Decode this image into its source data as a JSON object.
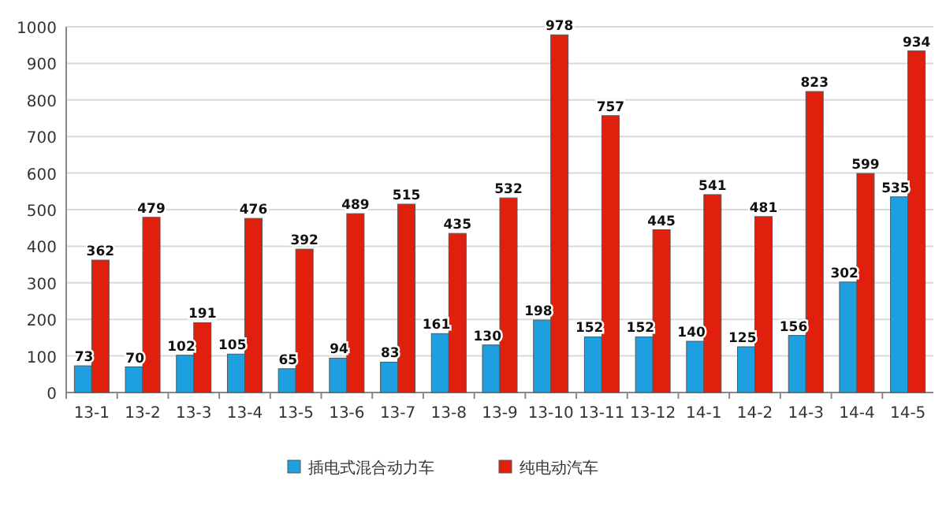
{
  "chart_data": {
    "type": "bar",
    "categories": [
      "13-1",
      "13-2",
      "13-3",
      "13-4",
      "13-5",
      "13-6",
      "13-7",
      "13-8",
      "13-9",
      "13-10",
      "13-11",
      "13-12",
      "14-1",
      "14-2",
      "14-3",
      "14-4",
      "14-5"
    ],
    "series": [
      {
        "name": "插电式混合动力车",
        "color": "#1e9fe0",
        "values": [
          73,
          70,
          102,
          105,
          65,
          94,
          83,
          161,
          130,
          198,
          152,
          152,
          140,
          125,
          156,
          302,
          535
        ]
      },
      {
        "name": "纯电动汽车",
        "color": "#e0200c",
        "values": [
          362,
          479,
          191,
          476,
          392,
          489,
          515,
          435,
          532,
          978,
          757,
          445,
          541,
          481,
          823,
          599,
          934
        ]
      }
    ],
    "ylim": [
      0,
      1000
    ],
    "yticks": [
      0,
      100,
      200,
      300,
      400,
      500,
      600,
      700,
      800,
      900,
      1000
    ],
    "grid": "y",
    "legend": "bottom",
    "data_labels": true
  }
}
